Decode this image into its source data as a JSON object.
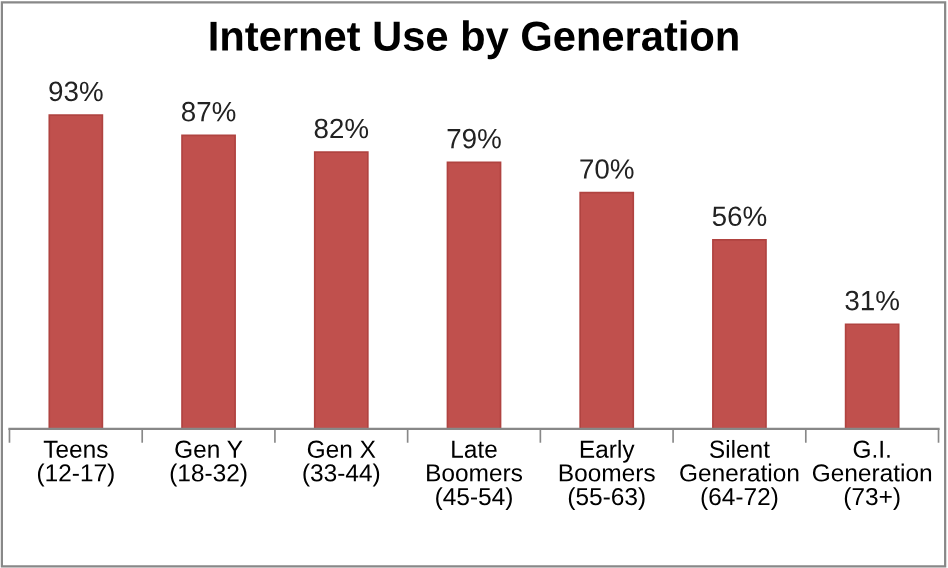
{
  "chart_data": {
    "type": "bar",
    "title": "Internet Use by Generation",
    "categories": [
      "Teens\n(12-17)",
      "Gen Y\n(18-32)",
      "Gen X\n(33-44)",
      "Late\nBoomers\n(45-54)",
      "Early\nBoomers\n(55-63)",
      "Silent\nGeneration\n(64-72)",
      "G.I.\nGeneration\n(73+)"
    ],
    "values": [
      93,
      87,
      82,
      79,
      70,
      56,
      31
    ],
    "value_labels": [
      "93%",
      "87%",
      "82%",
      "79%",
      "70%",
      "56%",
      "31%"
    ],
    "color": "#c0504d",
    "grid": false,
    "legend": false
  }
}
